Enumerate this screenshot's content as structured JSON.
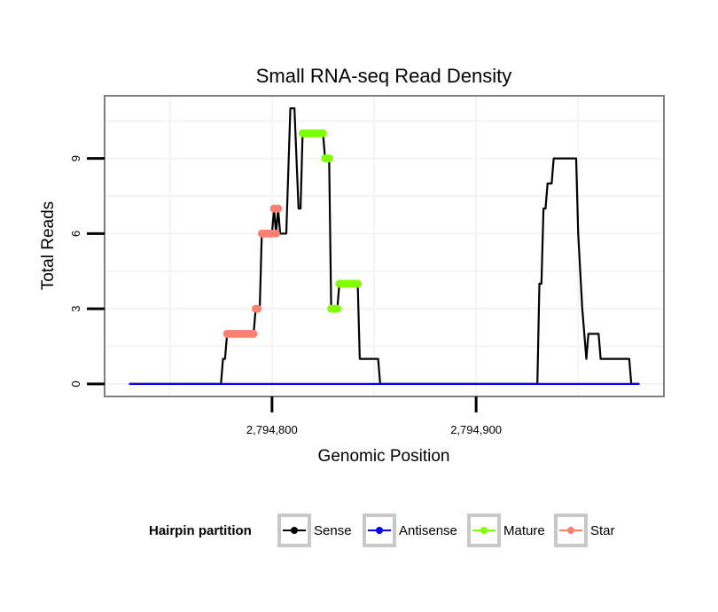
{
  "chart_data": {
    "type": "line",
    "title": "Small RNA-seq Read Density",
    "xlabel": "Genomic Position",
    "ylabel": "Total Reads",
    "xlim": [
      2794718,
      2794992
    ],
    "ylim": [
      -0.5,
      11.5
    ],
    "x_ticks": [
      2794800,
      2794900
    ],
    "x_tick_labels": [
      "2,794,800",
      "2,794,900"
    ],
    "y_ticks": [
      0,
      3,
      6,
      9
    ],
    "y_tick_labels": [
      "0",
      "3",
      "6",
      "9"
    ],
    "grid": true,
    "legend": {
      "title": "Hairpin partition",
      "position": "bottom",
      "entries": [
        {
          "name": "Sense",
          "color": "#000000"
        },
        {
          "name": "Antisense",
          "color": "#0000FF"
        },
        {
          "name": "Mature",
          "color": "#7FFF00"
        },
        {
          "name": "Star",
          "color": "#FA8072"
        }
      ]
    },
    "series": [
      {
        "name": "Sense",
        "color": "#000000",
        "points": [
          [
            2794730,
            0
          ],
          [
            2794775,
            0
          ],
          [
            2794776,
            1
          ],
          [
            2794777,
            1
          ],
          [
            2794778,
            2
          ],
          [
            2794791,
            2
          ],
          [
            2794792,
            3
          ],
          [
            2794794,
            3
          ],
          [
            2794795,
            6
          ],
          [
            2794800,
            6
          ],
          [
            2794801,
            7
          ],
          [
            2794802,
            6
          ],
          [
            2794803,
            7
          ],
          [
            2794804,
            6
          ],
          [
            2794807,
            6
          ],
          [
            2794809,
            11
          ],
          [
            2794811,
            11
          ],
          [
            2794813,
            7
          ],
          [
            2794814,
            7
          ],
          [
            2794815,
            10
          ],
          [
            2794825,
            10
          ],
          [
            2794826,
            9
          ],
          [
            2794828,
            9
          ],
          [
            2794829,
            3
          ],
          [
            2794832,
            3
          ],
          [
            2794833,
            4
          ],
          [
            2794842,
            4
          ],
          [
            2794843,
            1
          ],
          [
            2794852,
            1
          ],
          [
            2794853,
            0
          ],
          [
            2794930,
            0
          ],
          [
            2794931,
            4
          ],
          [
            2794932,
            4
          ],
          [
            2794933,
            7
          ],
          [
            2794934,
            7
          ],
          [
            2794935,
            8
          ],
          [
            2794937,
            8
          ],
          [
            2794938,
            9
          ],
          [
            2794949,
            9
          ],
          [
            2794950,
            6
          ],
          [
            2794952,
            3
          ],
          [
            2794954,
            1
          ],
          [
            2794955,
            2
          ],
          [
            2794960,
            2
          ],
          [
            2794961,
            1
          ],
          [
            2794975,
            1
          ],
          [
            2794976,
            0
          ],
          [
            2794980,
            0
          ]
        ]
      },
      {
        "name": "Antisense",
        "color": "#0000FF",
        "points": [
          [
            2794730,
            0
          ],
          [
            2794980,
            0
          ]
        ]
      },
      {
        "name": "Mature",
        "color": "#7FFF00",
        "points": [
          [
            2794815,
            10
          ],
          [
            2794816,
            10
          ],
          [
            2794817,
            10
          ],
          [
            2794818,
            10
          ],
          [
            2794819,
            10
          ],
          [
            2794820,
            10
          ],
          [
            2794821,
            10
          ],
          [
            2794822,
            10
          ],
          [
            2794823,
            10
          ],
          [
            2794824,
            10
          ],
          [
            2794825,
            10
          ],
          [
            2794826,
            9
          ],
          [
            2794827,
            9
          ],
          [
            2794828,
            9
          ],
          [
            2794829,
            3
          ],
          [
            2794830,
            3
          ],
          [
            2794831,
            3
          ],
          [
            2794832,
            3
          ],
          [
            2794833,
            4
          ],
          [
            2794834,
            4
          ],
          [
            2794835,
            4
          ],
          [
            2794836,
            4
          ],
          [
            2794837,
            4
          ],
          [
            2794838,
            4
          ],
          [
            2794839,
            4
          ],
          [
            2794840,
            4
          ],
          [
            2794841,
            4
          ],
          [
            2794842,
            4
          ]
        ]
      },
      {
        "name": "Star",
        "color": "#FA8072",
        "points": [
          [
            2794778,
            2
          ],
          [
            2794779,
            2
          ],
          [
            2794780,
            2
          ],
          [
            2794781,
            2
          ],
          [
            2794782,
            2
          ],
          [
            2794783,
            2
          ],
          [
            2794784,
            2
          ],
          [
            2794785,
            2
          ],
          [
            2794786,
            2
          ],
          [
            2794787,
            2
          ],
          [
            2794788,
            2
          ],
          [
            2794789,
            2
          ],
          [
            2794790,
            2
          ],
          [
            2794791,
            2
          ],
          [
            2794792,
            3
          ],
          [
            2794793,
            3
          ],
          [
            2794795,
            6
          ],
          [
            2794796,
            6
          ],
          [
            2794797,
            6
          ],
          [
            2794798,
            6
          ],
          [
            2794799,
            6
          ],
          [
            2794800,
            6
          ],
          [
            2794801,
            7
          ],
          [
            2794802,
            6
          ],
          [
            2794803,
            7
          ]
        ]
      }
    ]
  }
}
